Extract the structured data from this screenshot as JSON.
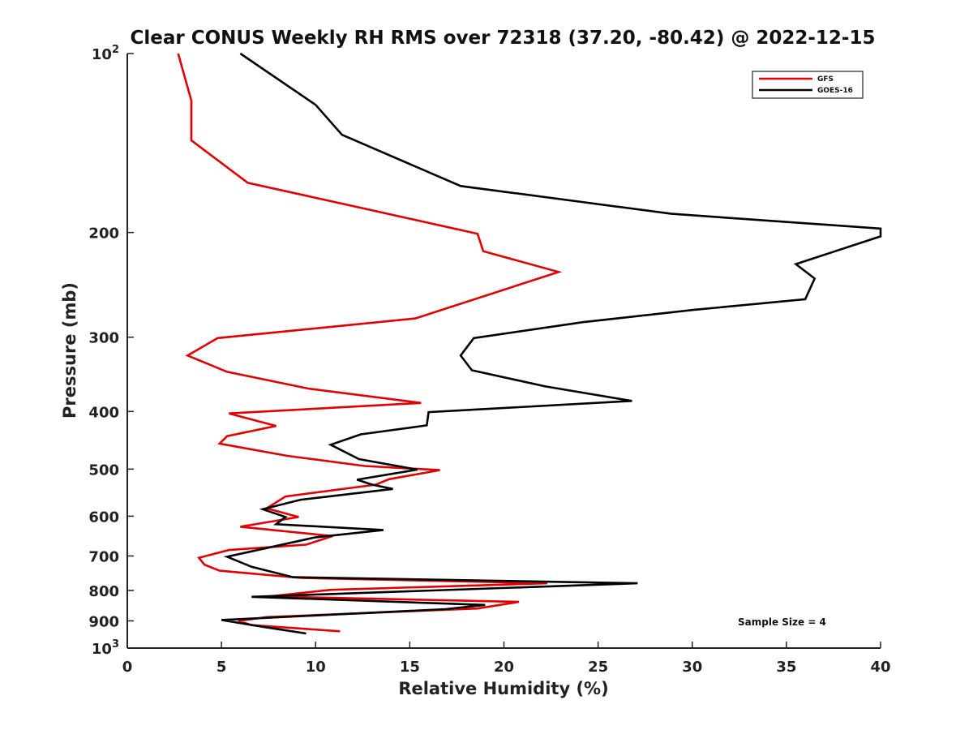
{
  "chart_data": {
    "type": "line",
    "title": "Clear CONUS Weekly RH RMS over 72318 (37.20, -80.42) @ 2022-12-15",
    "xlabel": "Relative Humidity (%)",
    "ylabel": "Pressure (mb)",
    "xlim": [
      0,
      40
    ],
    "ylim": [
      100,
      1000
    ],
    "y_scale": "log",
    "y_reversed": true,
    "grid": false,
    "legend_position": "top-right",
    "annotation": "Sample Size = 4",
    "x_ticks": [
      {
        "value": 0,
        "label": "0"
      },
      {
        "value": 5,
        "label": "5"
      },
      {
        "value": 10,
        "label": "10"
      },
      {
        "value": 15,
        "label": "15"
      },
      {
        "value": 20,
        "label": "20"
      },
      {
        "value": 25,
        "label": "25"
      },
      {
        "value": 30,
        "label": "30"
      },
      {
        "value": 35,
        "label": "35"
      },
      {
        "value": 40,
        "label": "40"
      }
    ],
    "y_ticks": [
      {
        "value": 100,
        "base": "10",
        "exp": "2"
      },
      {
        "value": 200,
        "label": "200"
      },
      {
        "value": 300,
        "label": "300"
      },
      {
        "value": 400,
        "label": "400"
      },
      {
        "value": 500,
        "label": "500"
      },
      {
        "value": 600,
        "label": "600"
      },
      {
        "value": 700,
        "label": "700"
      },
      {
        "value": 800,
        "label": "800"
      },
      {
        "value": 900,
        "label": "900"
      },
      {
        "value": 1000,
        "base": "10",
        "exp": "3"
      }
    ],
    "series": [
      {
        "name": "GFS",
        "color": "#e00000",
        "points": [
          [
            2.7,
            100
          ],
          [
            3.4,
            120
          ],
          [
            3.4,
            140
          ],
          [
            6.4,
            165
          ],
          [
            11.8,
            180
          ],
          [
            18.6,
            201
          ],
          [
            18.9,
            215
          ],
          [
            22.9,
            233
          ],
          [
            15.3,
            279
          ],
          [
            4.8,
            301
          ],
          [
            3.2,
            322
          ],
          [
            5.3,
            343
          ],
          [
            9.6,
            366
          ],
          [
            15.6,
            387
          ],
          [
            5.4,
            403
          ],
          [
            7.9,
            423
          ],
          [
            5.3,
            440
          ],
          [
            4.9,
            453
          ],
          [
            8.5,
            475
          ],
          [
            12.6,
            494
          ],
          [
            16.6,
            502
          ],
          [
            13.9,
            520
          ],
          [
            13.2,
            531
          ],
          [
            8.4,
            556
          ],
          [
            7.4,
            582
          ],
          [
            9.1,
            602
          ],
          [
            6.0,
            625
          ],
          [
            10.9,
            648
          ],
          [
            9.5,
            670
          ],
          [
            5.4,
            684
          ],
          [
            3.8,
            705
          ],
          [
            4.1,
            724
          ],
          [
            4.9,
            741
          ],
          [
            9.2,
            762
          ],
          [
            22.3,
            778
          ],
          [
            10.8,
            798
          ],
          [
            7.5,
            819
          ],
          [
            20.8,
            836
          ],
          [
            18.6,
            858
          ],
          [
            7.4,
            887
          ],
          [
            5.9,
            900
          ],
          [
            6.6,
            915
          ],
          [
            11.3,
            937
          ]
        ]
      },
      {
        "name": "GOES-16",
        "color": "#000000",
        "points": [
          [
            6.0,
            100
          ],
          [
            10.0,
            122
          ],
          [
            11.4,
            137
          ],
          [
            17.7,
            167
          ],
          [
            28.9,
            186
          ],
          [
            40.0,
            197
          ],
          [
            40.0,
            203
          ],
          [
            35.5,
            226
          ],
          [
            36.5,
            239
          ],
          [
            36.0,
            259
          ],
          [
            30.0,
            270
          ],
          [
            24.2,
            283
          ],
          [
            18.4,
            301
          ],
          [
            17.7,
            322
          ],
          [
            18.3,
            341
          ],
          [
            22.2,
            363
          ],
          [
            26.8,
            384
          ],
          [
            16.0,
            401
          ],
          [
            15.9,
            422
          ],
          [
            12.4,
            437
          ],
          [
            10.8,
            455
          ],
          [
            12.3,
            481
          ],
          [
            15.4,
            501
          ],
          [
            12.2,
            521
          ],
          [
            13.0,
            531
          ],
          [
            14.1,
            540
          ],
          [
            9.2,
            563
          ],
          [
            7.2,
            584
          ],
          [
            8.4,
            602
          ],
          [
            7.9,
            619
          ],
          [
            13.6,
            633
          ],
          [
            10.0,
            651
          ],
          [
            7.2,
            681
          ],
          [
            5.3,
            702
          ],
          [
            6.6,
            730
          ],
          [
            8.8,
            760
          ],
          [
            27.1,
            778
          ],
          [
            6.6,
            820
          ],
          [
            19.0,
            846
          ],
          [
            16.9,
            860
          ],
          [
            5.0,
            897
          ],
          [
            7.2,
            921
          ],
          [
            9.5,
            945
          ]
        ]
      }
    ]
  }
}
